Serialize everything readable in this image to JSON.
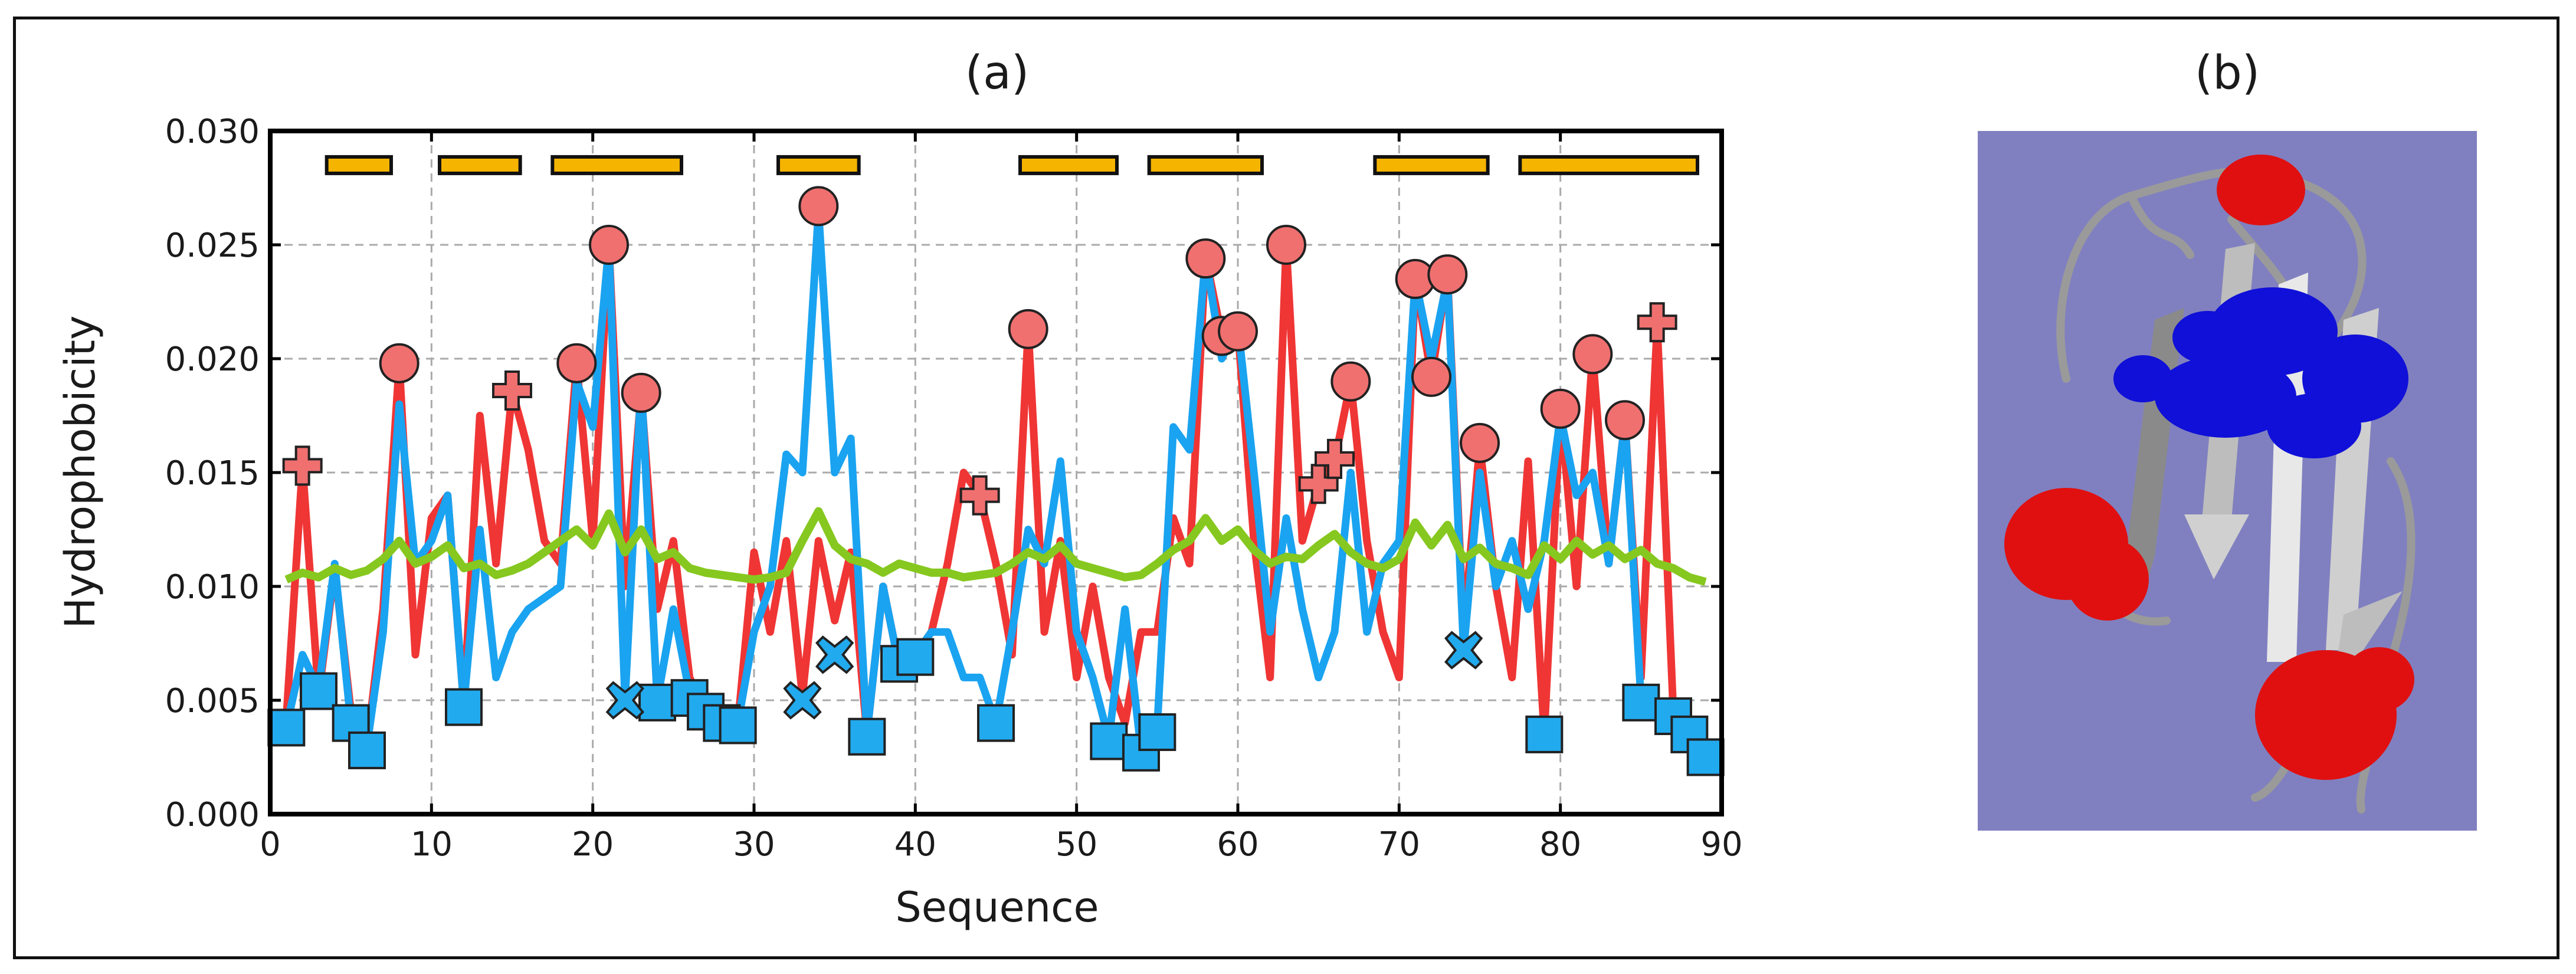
{
  "chart_data": {
    "type": "line",
    "panel_label": "(a)",
    "xlabel": "Sequence",
    "ylabel": "Hydrophobicity",
    "xlim": [
      0,
      90
    ],
    "ylim": [
      0,
      0.03
    ],
    "x_ticks": [
      "0",
      "10",
      "20",
      "30",
      "40",
      "50",
      "60",
      "70",
      "80",
      "90"
    ],
    "y_ticks": [
      "0.000",
      "0.005",
      "0.010",
      "0.015",
      "0.020",
      "0.025",
      "0.030"
    ],
    "grid": true,
    "colors": {
      "red": "#f03535",
      "blue": "#1aa3f0",
      "green": "#86c81f",
      "bar": "#f5b400"
    },
    "series": [
      {
        "name": "red",
        "color": "#f03535",
        "x": [
          1,
          2,
          3,
          4,
          5,
          6,
          7,
          8,
          9,
          10,
          11,
          12,
          13,
          14,
          15,
          16,
          17,
          18,
          19,
          20,
          21,
          22,
          23,
          24,
          25,
          26,
          27,
          28,
          29,
          30,
          31,
          32,
          33,
          34,
          35,
          36,
          37,
          38,
          39,
          40,
          41,
          42,
          43,
          44,
          45,
          46,
          47,
          48,
          49,
          50,
          51,
          52,
          53,
          54,
          55,
          56,
          57,
          58,
          59,
          60,
          61,
          62,
          63,
          64,
          65,
          66,
          67,
          68,
          69,
          70,
          71,
          72,
          73,
          74,
          75,
          76,
          77,
          78,
          79,
          80,
          81,
          82,
          83,
          84,
          85,
          86,
          87,
          88,
          89
        ],
        "y": [
          0.0042,
          0.0153,
          0.0052,
          0.0108,
          0.0045,
          0.003,
          0.009,
          0.0198,
          0.007,
          0.013,
          0.014,
          0.0048,
          0.0175,
          0.011,
          0.0186,
          0.016,
          0.012,
          0.011,
          0.0198,
          0.012,
          0.025,
          0.01,
          0.0185,
          0.009,
          0.012,
          0.006,
          0.0045,
          0.0042,
          0.004,
          0.0115,
          0.008,
          0.012,
          0.0052,
          0.012,
          0.0085,
          0.0115,
          0.0035,
          0.01,
          0.0065,
          0.007,
          0.008,
          0.011,
          0.015,
          0.014,
          0.011,
          0.007,
          0.0213,
          0.008,
          0.012,
          0.006,
          0.01,
          0.006,
          0.004,
          0.008,
          0.008,
          0.013,
          0.011,
          0.0245,
          0.021,
          0.0213,
          0.012,
          0.006,
          0.025,
          0.012,
          0.0145,
          0.0155,
          0.019,
          0.012,
          0.008,
          0.006,
          0.0235,
          0.0192,
          0.0237,
          0.008,
          0.0162,
          0.01,
          0.006,
          0.0155,
          0.0035,
          0.0178,
          0.01,
          0.0202,
          0.011,
          0.0173,
          0.006,
          0.0215,
          0.0045,
          0.0035,
          0.003
        ]
      },
      {
        "name": "blue",
        "color": "#1aa3f0",
        "x": [
          1,
          2,
          3,
          4,
          5,
          6,
          7,
          8,
          9,
          10,
          11,
          12,
          13,
          14,
          15,
          16,
          17,
          18,
          19,
          20,
          21,
          22,
          23,
          24,
          25,
          26,
          27,
          28,
          29,
          30,
          31,
          32,
          33,
          34,
          35,
          36,
          37,
          38,
          39,
          40,
          41,
          42,
          43,
          44,
          45,
          46,
          47,
          48,
          49,
          50,
          51,
          52,
          53,
          54,
          55,
          56,
          57,
          58,
          59,
          60,
          61,
          62,
          63,
          64,
          65,
          66,
          67,
          68,
          69,
          70,
          71,
          72,
          73,
          74,
          75,
          76,
          77,
          78,
          79,
          80,
          81,
          82,
          83,
          84,
          85,
          86,
          87,
          88,
          89
        ],
        "y": [
          0.0038,
          0.007,
          0.0055,
          0.011,
          0.004,
          0.003,
          0.008,
          0.018,
          0.011,
          0.012,
          0.014,
          0.0048,
          0.0125,
          0.006,
          0.008,
          0.009,
          0.0095,
          0.01,
          0.019,
          0.017,
          0.025,
          0.005,
          0.019,
          0.005,
          0.009,
          0.0053,
          0.0045,
          0.004,
          0.004,
          0.008,
          0.01,
          0.0158,
          0.015,
          0.0265,
          0.015,
          0.0165,
          0.0035,
          0.01,
          0.0065,
          0.007,
          0.008,
          0.008,
          0.006,
          0.006,
          0.004,
          0.008,
          0.0125,
          0.011,
          0.0155,
          0.008,
          0.006,
          0.0033,
          0.009,
          0.0028,
          0.0038,
          0.017,
          0.016,
          0.0245,
          0.02,
          0.0215,
          0.015,
          0.008,
          0.013,
          0.009,
          0.006,
          0.008,
          0.015,
          0.008,
          0.011,
          0.012,
          0.0235,
          0.02,
          0.0235,
          0.0072,
          0.015,
          0.01,
          0.012,
          0.009,
          0.012,
          0.0175,
          0.014,
          0.015,
          0.011,
          0.0173,
          0.005,
          0.005,
          0.004,
          0.0035,
          0.0025
        ]
      },
      {
        "name": "green",
        "color": "#86c81f",
        "x": [
          1,
          2,
          3,
          4,
          5,
          6,
          7,
          8,
          9,
          10,
          11,
          12,
          13,
          14,
          15,
          16,
          17,
          18,
          19,
          20,
          21,
          22,
          23,
          24,
          25,
          26,
          27,
          28,
          29,
          30,
          31,
          32,
          33,
          34,
          35,
          36,
          37,
          38,
          39,
          40,
          41,
          42,
          43,
          44,
          45,
          46,
          47,
          48,
          49,
          50,
          51,
          52,
          53,
          54,
          55,
          56,
          57,
          58,
          59,
          60,
          61,
          62,
          63,
          64,
          65,
          66,
          67,
          68,
          69,
          70,
          71,
          72,
          73,
          74,
          75,
          76,
          77,
          78,
          79,
          80,
          81,
          82,
          83,
          84,
          85,
          86,
          87,
          88,
          89
        ],
        "y": [
          0.0103,
          0.0106,
          0.0104,
          0.0108,
          0.0105,
          0.0107,
          0.0112,
          0.012,
          0.011,
          0.0113,
          0.0118,
          0.0108,
          0.011,
          0.0105,
          0.0107,
          0.011,
          0.0115,
          0.012,
          0.0125,
          0.0118,
          0.0132,
          0.0115,
          0.0125,
          0.0112,
          0.0115,
          0.0108,
          0.0106,
          0.0105,
          0.0104,
          0.0103,
          0.0104,
          0.0106,
          0.012,
          0.0133,
          0.0118,
          0.0112,
          0.011,
          0.0106,
          0.011,
          0.0108,
          0.0106,
          0.0106,
          0.0104,
          0.0105,
          0.0106,
          0.011,
          0.0115,
          0.0112,
          0.0118,
          0.011,
          0.0108,
          0.0106,
          0.0104,
          0.0105,
          0.011,
          0.0116,
          0.012,
          0.013,
          0.012,
          0.0125,
          0.0116,
          0.011,
          0.0113,
          0.0112,
          0.0118,
          0.0123,
          0.0115,
          0.011,
          0.0108,
          0.0112,
          0.0128,
          0.0118,
          0.0127,
          0.0112,
          0.0117,
          0.011,
          0.0108,
          0.0105,
          0.0118,
          0.0112,
          0.012,
          0.0114,
          0.0118,
          0.0112,
          0.0116,
          0.011,
          0.0108,
          0.0104,
          0.0102
        ]
      }
    ],
    "markers": {
      "red_circles": [
        [
          8,
          0.0198
        ],
        [
          19,
          0.0198
        ],
        [
          21,
          0.025
        ],
        [
          23,
          0.0185
        ],
        [
          34,
          0.0267
        ],
        [
          47,
          0.0213
        ],
        [
          58,
          0.0244
        ],
        [
          59,
          0.021
        ],
        [
          60,
          0.0212
        ],
        [
          63,
          0.025
        ],
        [
          67,
          0.019
        ],
        [
          71,
          0.0235
        ],
        [
          72,
          0.0192
        ],
        [
          73,
          0.0237
        ],
        [
          75,
          0.0163
        ],
        [
          80,
          0.0178
        ],
        [
          82,
          0.0202
        ],
        [
          84,
          0.0173
        ]
      ],
      "red_plus": [
        [
          2,
          0.0153
        ],
        [
          15,
          0.0186
        ],
        [
          44,
          0.014
        ],
        [
          65,
          0.0145
        ],
        [
          66,
          0.0156
        ],
        [
          86,
          0.0216
        ]
      ],
      "blue_squares": [
        [
          1,
          0.0038
        ],
        [
          3,
          0.0054
        ],
        [
          5,
          0.004
        ],
        [
          6,
          0.0028
        ],
        [
          12,
          0.0047
        ],
        [
          24,
          0.0049
        ],
        [
          26,
          0.0051
        ],
        [
          27,
          0.0045
        ],
        [
          28,
          0.004
        ],
        [
          29,
          0.0039
        ],
        [
          37,
          0.0034
        ],
        [
          39,
          0.0066
        ],
        [
          40,
          0.0069
        ],
        [
          45,
          0.004
        ],
        [
          52,
          0.0032
        ],
        [
          54,
          0.0027
        ],
        [
          55,
          0.0036
        ],
        [
          79,
          0.0035
        ],
        [
          85,
          0.0049
        ],
        [
          87,
          0.0043
        ],
        [
          88,
          0.0035
        ],
        [
          89,
          0.0025
        ]
      ],
      "blue_x": [
        [
          22,
          0.005
        ],
        [
          33,
          0.005
        ],
        [
          35,
          0.007
        ],
        [
          74,
          0.0072
        ]
      ]
    },
    "structure_bars": [
      [
        3.5,
        7.5
      ],
      [
        10.5,
        15.5
      ],
      [
        17.5,
        25.5
      ],
      [
        31.5,
        36.5
      ],
      [
        46.5,
        52.5
      ],
      [
        54.5,
        61.5
      ],
      [
        68.5,
        75.5
      ],
      [
        77.5,
        88.5
      ]
    ],
    "bar_level": 0.0285
  },
  "panel_b": {
    "label": "(b)",
    "background": "#8080c0",
    "hydrophobic_color": "#e01010",
    "core_color": "#1010d8",
    "ribbon_color": "#d8d8d8"
  }
}
